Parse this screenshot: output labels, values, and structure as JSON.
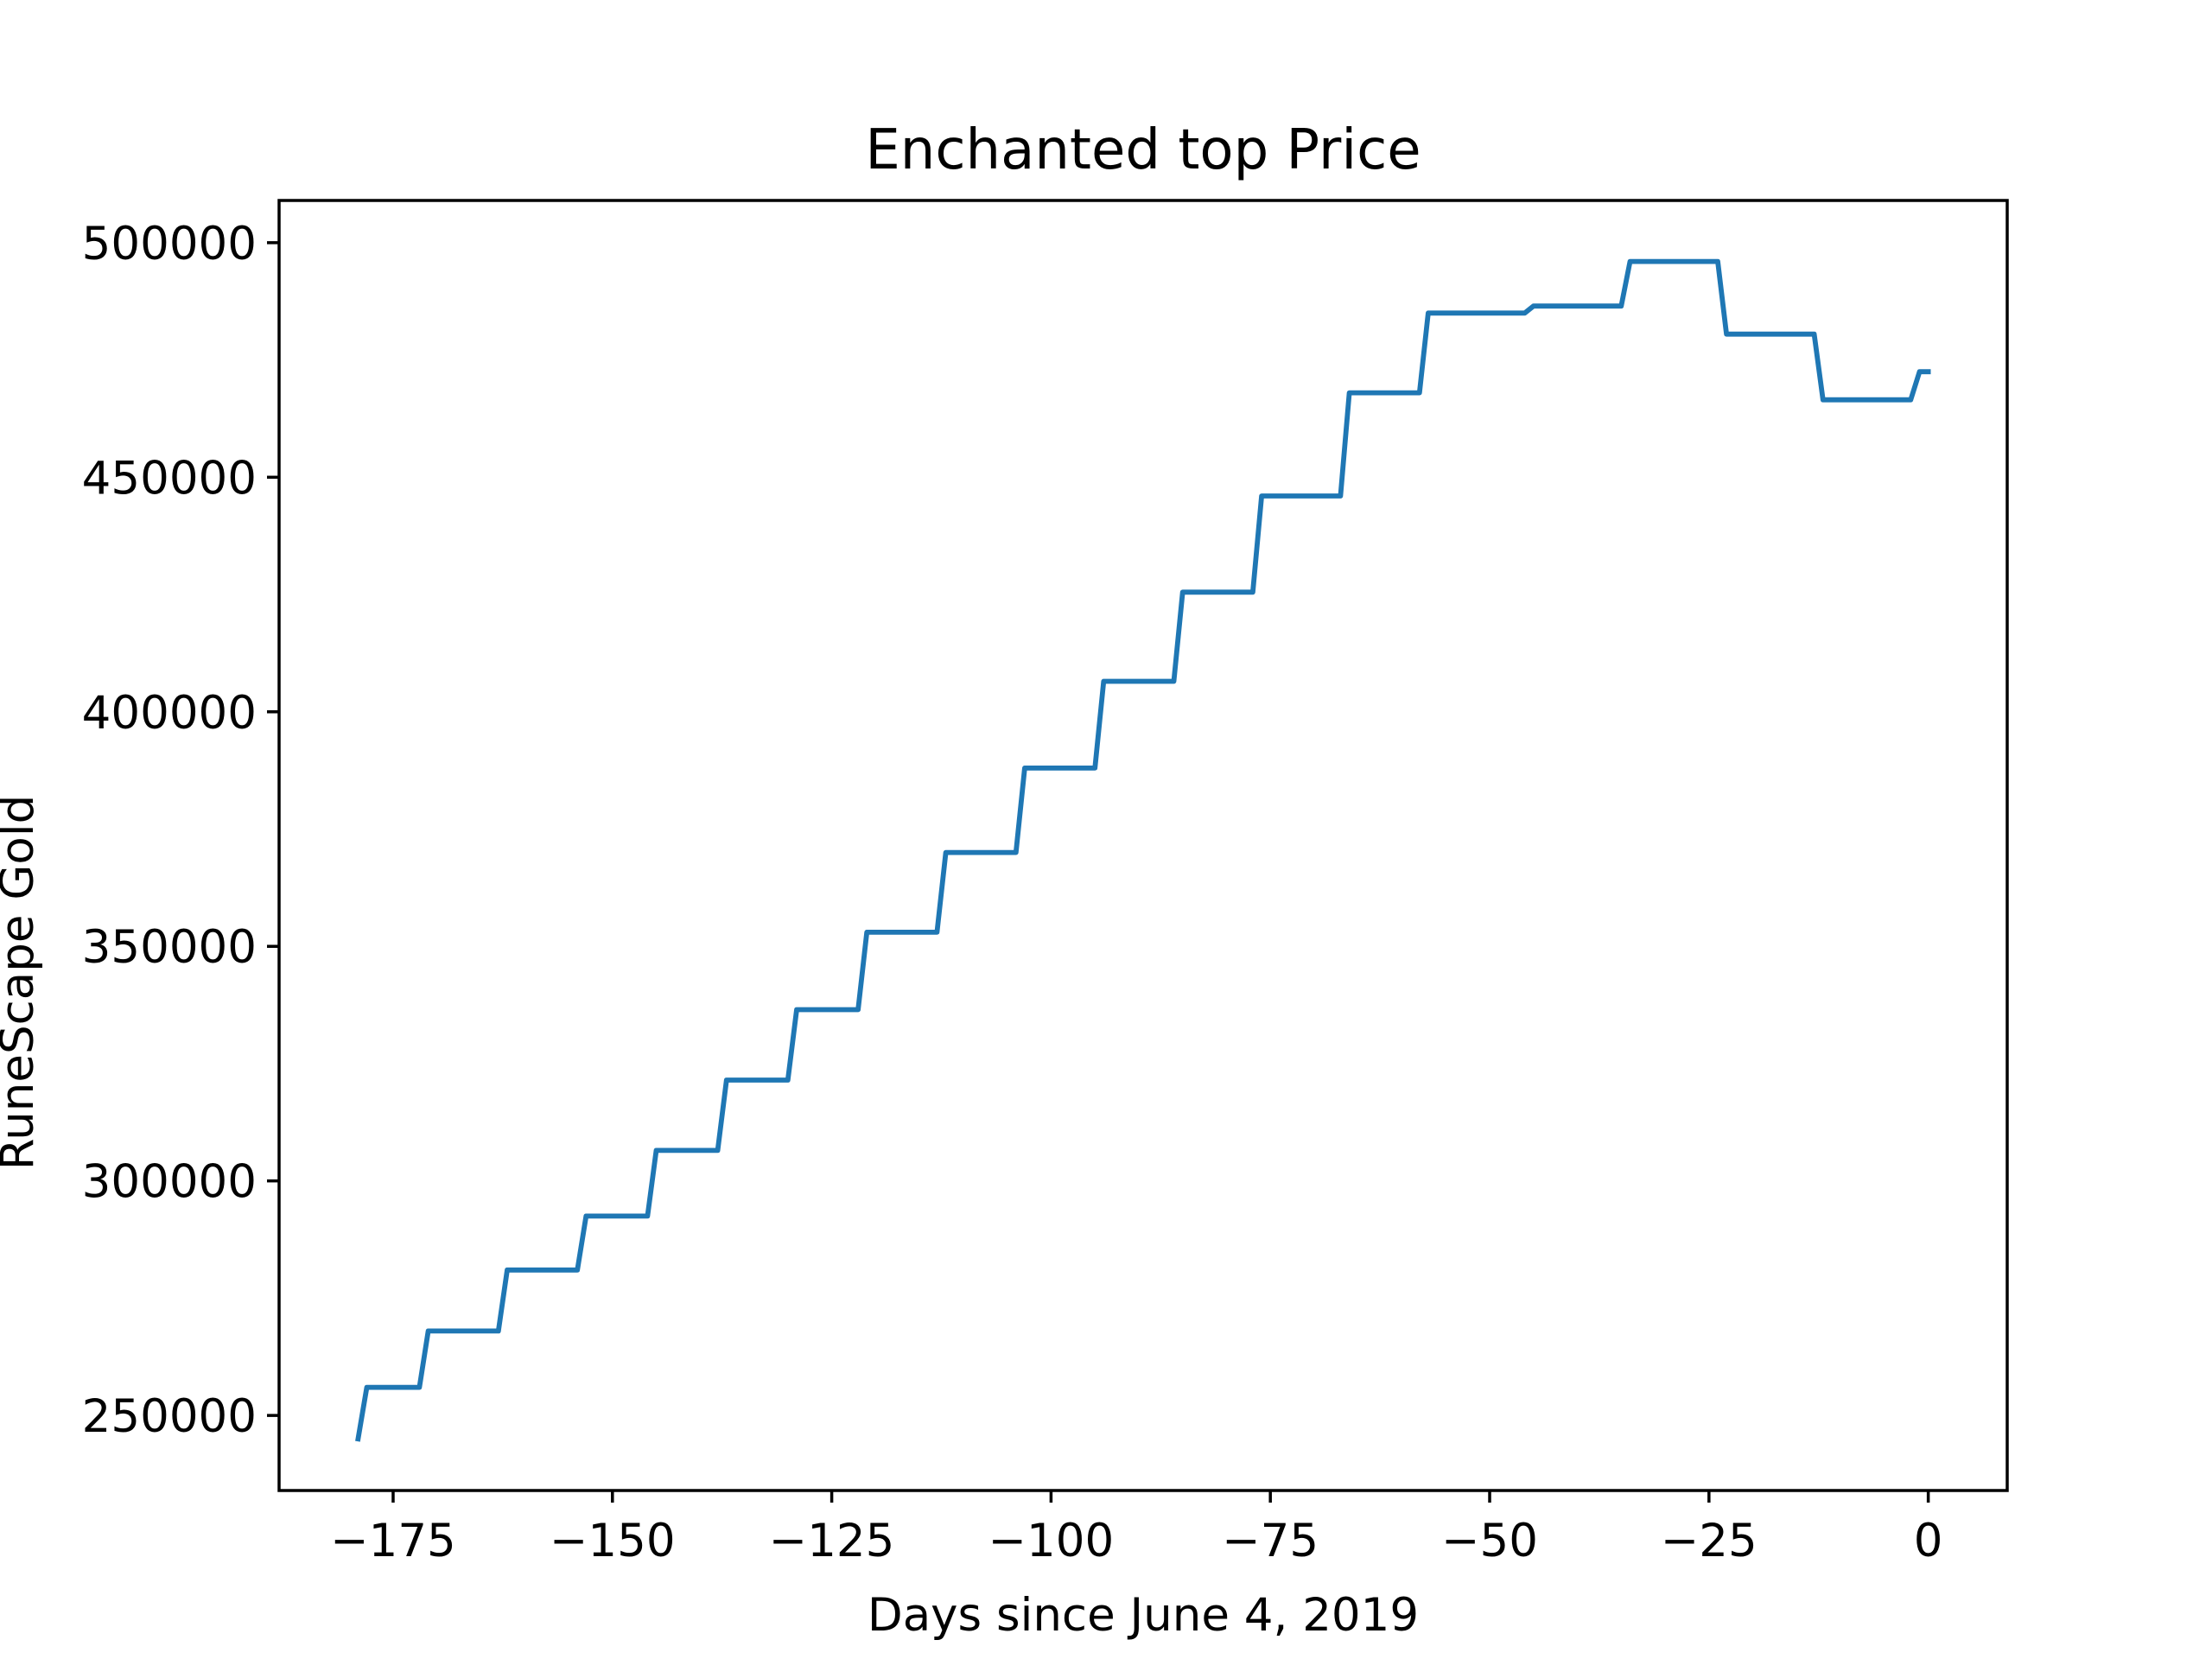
{
  "chart_data": {
    "type": "line",
    "title": "Enchanted top Price",
    "xlabel": "Days since June 4, 2019",
    "ylabel": "RuneScape Gold",
    "xlim": [
      -188,
      9
    ],
    "ylim": [
      234000,
      509000
    ],
    "xticks": [
      -175,
      -150,
      -125,
      -100,
      -75,
      -50,
      -25,
      0
    ],
    "xtick_labels": [
      "−175",
      "−150",
      "−125",
      "−100",
      "−75",
      "−50",
      "−25",
      "0"
    ],
    "yticks": [
      250000,
      300000,
      350000,
      400000,
      450000,
      500000
    ],
    "ytick_labels": [
      "250000",
      "300000",
      "350000",
      "400000",
      "450000",
      "500000"
    ],
    "grid": false,
    "legend": "none",
    "series": [
      {
        "color": "#1f77b4",
        "points": [
          [
            -179,
            245000
          ],
          [
            -178,
            256000
          ],
          [
            -172,
            256000
          ],
          [
            -171,
            268000
          ],
          [
            -163,
            268000
          ],
          [
            -162,
            281000
          ],
          [
            -154,
            281000
          ],
          [
            -153,
            292500
          ],
          [
            -146,
            292500
          ],
          [
            -145,
            306500
          ],
          [
            -138,
            306500
          ],
          [
            -137,
            321500
          ],
          [
            -130,
            321500
          ],
          [
            -129,
            336500
          ],
          [
            -122,
            336500
          ],
          [
            -121,
            353000
          ],
          [
            -113,
            353000
          ],
          [
            -112,
            370000
          ],
          [
            -104,
            370000
          ],
          [
            -103,
            388000
          ],
          [
            -95,
            388000
          ],
          [
            -94,
            406500
          ],
          [
            -86,
            406500
          ],
          [
            -85,
            425500
          ],
          [
            -77,
            425500
          ],
          [
            -76,
            446000
          ],
          [
            -67,
            446000
          ],
          [
            -66,
            468000
          ],
          [
            -58,
            468000
          ],
          [
            -57,
            485000
          ],
          [
            -46,
            485000
          ],
          [
            -45,
            486500
          ],
          [
            -35,
            486500
          ],
          [
            -34,
            496000
          ],
          [
            -24,
            496000
          ],
          [
            -23,
            480500
          ],
          [
            -13,
            480500
          ],
          [
            -12,
            466500
          ],
          [
            -2,
            466500
          ],
          [
            -1,
            472500
          ],
          [
            0,
            472500
          ]
        ]
      }
    ]
  }
}
